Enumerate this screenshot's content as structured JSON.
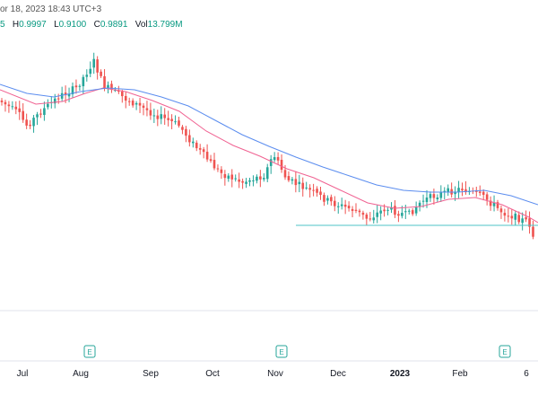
{
  "header": {
    "datetime": "or 18, 2023 18:43 UTC+3",
    "ohlc_open_fragment": "5",
    "high_label": "H",
    "high_value": "0.9997",
    "low_label": "L",
    "low_value": "0.9100",
    "close_label": "C",
    "close_value": "0.9891",
    "vol_label": "Vol",
    "vol_value": "13.799M"
  },
  "colors": {
    "up": "#26a69a",
    "down": "#ef5350",
    "ma_fast": "#f06292",
    "ma_slow": "#5b8def",
    "support_line": "#4fc3c7",
    "axis_text": "#131722",
    "earnings_badge": "#26a69a"
  },
  "chart_data": {
    "type": "candlestick",
    "x_axis_labels": [
      "Jul",
      "Aug",
      "Sep",
      "Oct",
      "Nov",
      "Dec",
      "2023",
      "Feb",
      "6"
    ],
    "earnings_markers": [
      "E",
      "E",
      "E"
    ],
    "indicators": [
      "moving-average-fast",
      "moving-average-slow"
    ],
    "support_level_drawn": true,
    "grid": false
  }
}
